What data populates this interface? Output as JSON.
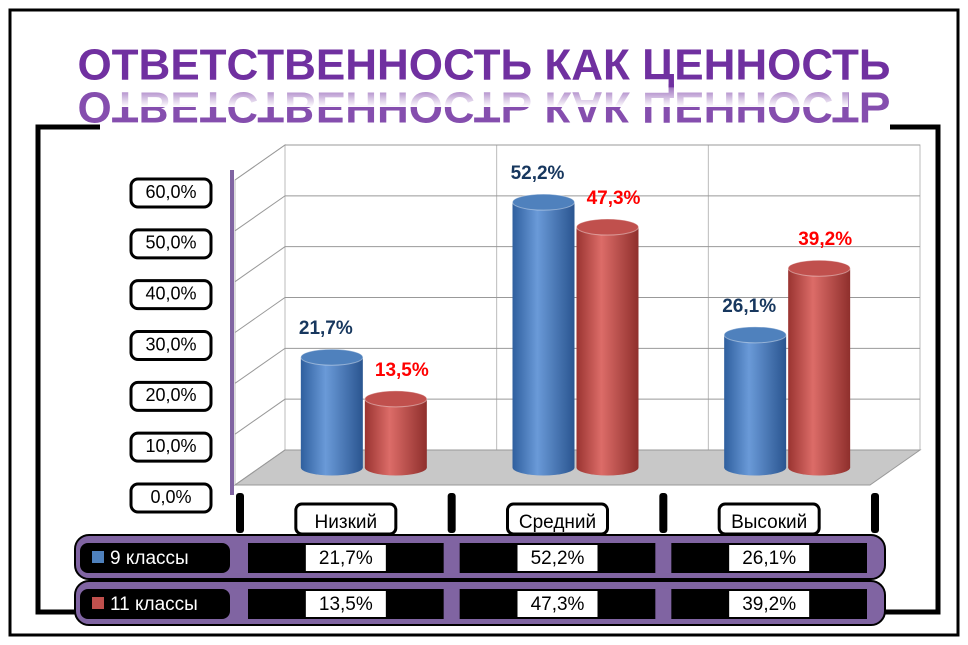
{
  "chart_data": {
    "type": "bar3d",
    "title": "ОТВЕТСТВЕННОСТЬ КАК ЦЕННОСТЬ",
    "categories": [
      "Низкий",
      "Средний",
      "Высокий"
    ],
    "series": [
      {
        "name": "9 классы",
        "color": "#4f81bd",
        "label_color": "#17375e",
        "values": [
          21.7,
          52.2,
          26.1
        ],
        "value_labels": [
          "21,7%",
          "52,2%",
          "26,1%"
        ]
      },
      {
        "name": "11 классы",
        "color": "#c0504d",
        "label_color": "#ff0000",
        "values": [
          13.5,
          47.3,
          39.2
        ],
        "value_labels": [
          "13,5%",
          "47,3%",
          "39,2%"
        ]
      }
    ],
    "ylim": [
      0,
      60
    ],
    "yticks": [
      {
        "value": 0,
        "label": "0,0%"
      },
      {
        "value": 10,
        "label": "10,0%"
      },
      {
        "value": 20,
        "label": "20,0%"
      },
      {
        "value": 30,
        "label": "30,0%"
      },
      {
        "value": 40,
        "label": "40,0%"
      },
      {
        "value": 50,
        "label": "50,0%"
      },
      {
        "value": 60,
        "label": "60,0%"
      }
    ],
    "grid": true,
    "data_table": true
  }
}
